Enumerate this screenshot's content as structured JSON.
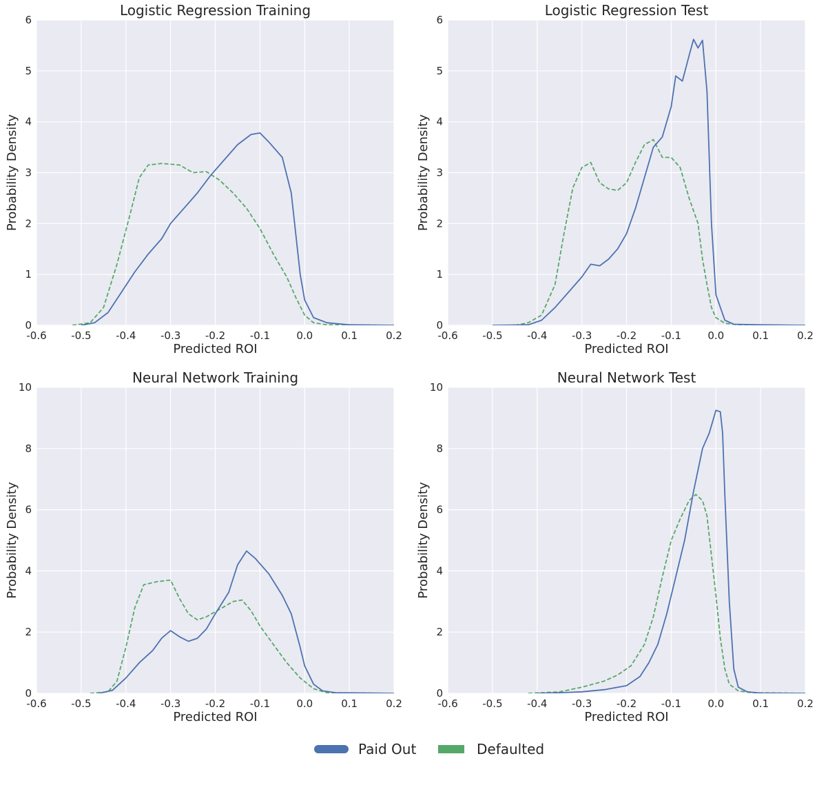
{
  "colors": {
    "paid": "#4c72b0",
    "defaulted": "#55a868",
    "plot_bg": "#eaeaf2",
    "grid": "#ffffff",
    "text": "#262626"
  },
  "legend": {
    "paid_label": "Paid Out",
    "defaulted_label": "Defaulted"
  },
  "chart_data": [
    {
      "type": "line",
      "title": "Logistic Regression Training",
      "xlabel": "Predicted ROI",
      "ylabel": "Probability Density",
      "xlim": [
        -0.6,
        0.2
      ],
      "ylim": [
        0,
        6
      ],
      "xticks": [
        "-0.6",
        "-0.5",
        "-0.4",
        "-0.3",
        "-0.2",
        "-0.1",
        "0.0",
        "0.1",
        "0.2"
      ],
      "yticks": [
        "0",
        "1",
        "2",
        "3",
        "4",
        "5",
        "6"
      ],
      "series": [
        {
          "name": "Paid Out",
          "style": "solid",
          "points": [
            [
              -0.5,
              0
            ],
            [
              -0.47,
              0.05
            ],
            [
              -0.44,
              0.25
            ],
            [
              -0.41,
              0.65
            ],
            [
              -0.38,
              1.05
            ],
            [
              -0.35,
              1.4
            ],
            [
              -0.32,
              1.7
            ],
            [
              -0.3,
              2.0
            ],
            [
              -0.27,
              2.3
            ],
            [
              -0.24,
              2.6
            ],
            [
              -0.21,
              2.95
            ],
            [
              -0.18,
              3.25
            ],
            [
              -0.15,
              3.55
            ],
            [
              -0.12,
              3.75
            ],
            [
              -0.1,
              3.78
            ],
            [
              -0.08,
              3.6
            ],
            [
              -0.05,
              3.3
            ],
            [
              -0.03,
              2.6
            ],
            [
              -0.02,
              1.8
            ],
            [
              -0.01,
              1.0
            ],
            [
              0.0,
              0.5
            ],
            [
              0.02,
              0.15
            ],
            [
              0.05,
              0.05
            ],
            [
              0.1,
              0.01
            ],
            [
              0.2,
              0
            ]
          ]
        },
        {
          "name": "Defaulted",
          "style": "dashed",
          "points": [
            [
              -0.52,
              0
            ],
            [
              -0.48,
              0.05
            ],
            [
              -0.45,
              0.35
            ],
            [
              -0.42,
              1.2
            ],
            [
              -0.39,
              2.2
            ],
            [
              -0.37,
              2.9
            ],
            [
              -0.35,
              3.15
            ],
            [
              -0.32,
              3.18
            ],
            [
              -0.28,
              3.15
            ],
            [
              -0.25,
              3.0
            ],
            [
              -0.22,
              3.02
            ],
            [
              -0.19,
              2.85
            ],
            [
              -0.16,
              2.6
            ],
            [
              -0.13,
              2.3
            ],
            [
              -0.1,
              1.9
            ],
            [
              -0.07,
              1.4
            ],
            [
              -0.04,
              0.95
            ],
            [
              -0.02,
              0.55
            ],
            [
              0.0,
              0.2
            ],
            [
              0.02,
              0.05
            ],
            [
              0.05,
              0.01
            ],
            [
              0.2,
              0
            ]
          ]
        }
      ]
    },
    {
      "type": "line",
      "title": "Logistic Regression Test",
      "xlabel": "Predicted ROI",
      "ylabel": "Probability Density",
      "xlim": [
        -0.6,
        0.2
      ],
      "ylim": [
        0,
        6
      ],
      "xticks": [
        "-0.6",
        "-0.5",
        "-0.4",
        "-0.3",
        "-0.2",
        "-0.1",
        "0.0",
        "0.1",
        "0.2"
      ],
      "yticks": [
        "0",
        "1",
        "2",
        "3",
        "4",
        "5",
        "6"
      ],
      "series": [
        {
          "name": "Paid Out",
          "style": "solid",
          "points": [
            [
              -0.5,
              0
            ],
            [
              -0.42,
              0.01
            ],
            [
              -0.39,
              0.1
            ],
            [
              -0.36,
              0.35
            ],
            [
              -0.33,
              0.65
            ],
            [
              -0.3,
              0.95
            ],
            [
              -0.28,
              1.2
            ],
            [
              -0.26,
              1.17
            ],
            [
              -0.24,
              1.3
            ],
            [
              -0.22,
              1.5
            ],
            [
              -0.2,
              1.8
            ],
            [
              -0.18,
              2.3
            ],
            [
              -0.16,
              2.9
            ],
            [
              -0.14,
              3.5
            ],
            [
              -0.12,
              3.7
            ],
            [
              -0.1,
              4.3
            ],
            [
              -0.09,
              4.9
            ],
            [
              -0.075,
              4.8
            ],
            [
              -0.06,
              5.3
            ],
            [
              -0.05,
              5.62
            ],
            [
              -0.04,
              5.45
            ],
            [
              -0.03,
              5.6
            ],
            [
              -0.02,
              4.6
            ],
            [
              -0.01,
              2.0
            ],
            [
              0.0,
              0.6
            ],
            [
              0.02,
              0.1
            ],
            [
              0.04,
              0.02
            ],
            [
              0.1,
              0.01
            ],
            [
              0.2,
              0
            ]
          ]
        },
        {
          "name": "Defaulted",
          "style": "dashed",
          "points": [
            [
              -0.45,
              0
            ],
            [
              -0.42,
              0.05
            ],
            [
              -0.39,
              0.2
            ],
            [
              -0.36,
              0.8
            ],
            [
              -0.34,
              1.8
            ],
            [
              -0.32,
              2.7
            ],
            [
              -0.3,
              3.1
            ],
            [
              -0.28,
              3.2
            ],
            [
              -0.26,
              2.8
            ],
            [
              -0.24,
              2.68
            ],
            [
              -0.22,
              2.65
            ],
            [
              -0.2,
              2.8
            ],
            [
              -0.18,
              3.2
            ],
            [
              -0.16,
              3.55
            ],
            [
              -0.14,
              3.65
            ],
            [
              -0.12,
              3.3
            ],
            [
              -0.1,
              3.3
            ],
            [
              -0.08,
              3.1
            ],
            [
              -0.06,
              2.5
            ],
            [
              -0.04,
              2.0
            ],
            [
              -0.03,
              1.3
            ],
            [
              -0.02,
              0.8
            ],
            [
              -0.01,
              0.35
            ],
            [
              0.0,
              0.15
            ],
            [
              0.02,
              0.04
            ],
            [
              0.05,
              0.01
            ],
            [
              0.2,
              0
            ]
          ]
        }
      ]
    },
    {
      "type": "line",
      "title": "Neural Network Training",
      "xlabel": "Predicted ROI",
      "ylabel": "Probability Density",
      "xlim": [
        -0.6,
        0.2
      ],
      "ylim": [
        0,
        10
      ],
      "xticks": [
        "-0.6",
        "-0.5",
        "-0.4",
        "-0.3",
        "-0.2",
        "-0.1",
        "0.0",
        "0.1",
        "0.2"
      ],
      "yticks": [
        "0",
        "2",
        "4",
        "6",
        "8",
        "10"
      ],
      "series": [
        {
          "name": "Paid Out",
          "style": "solid",
          "points": [
            [
              -0.46,
              0
            ],
            [
              -0.43,
              0.1
            ],
            [
              -0.4,
              0.5
            ],
            [
              -0.37,
              1.0
            ],
            [
              -0.34,
              1.4
            ],
            [
              -0.32,
              1.8
            ],
            [
              -0.3,
              2.05
            ],
            [
              -0.28,
              1.85
            ],
            [
              -0.26,
              1.7
            ],
            [
              -0.24,
              1.8
            ],
            [
              -0.22,
              2.1
            ],
            [
              -0.2,
              2.6
            ],
            [
              -0.17,
              3.3
            ],
            [
              -0.15,
              4.2
            ],
            [
              -0.13,
              4.65
            ],
            [
              -0.11,
              4.4
            ],
            [
              -0.08,
              3.9
            ],
            [
              -0.05,
              3.2
            ],
            [
              -0.03,
              2.6
            ],
            [
              -0.01,
              1.5
            ],
            [
              0.0,
              0.9
            ],
            [
              0.02,
              0.3
            ],
            [
              0.04,
              0.08
            ],
            [
              0.07,
              0.02
            ],
            [
              0.2,
              0
            ]
          ]
        },
        {
          "name": "Defaulted",
          "style": "dashed",
          "points": [
            [
              -0.48,
              0
            ],
            [
              -0.44,
              0.05
            ],
            [
              -0.42,
              0.4
            ],
            [
              -0.4,
              1.5
            ],
            [
              -0.38,
              2.8
            ],
            [
              -0.36,
              3.55
            ],
            [
              -0.33,
              3.65
            ],
            [
              -0.3,
              3.7
            ],
            [
              -0.28,
              3.1
            ],
            [
              -0.26,
              2.6
            ],
            [
              -0.24,
              2.4
            ],
            [
              -0.22,
              2.5
            ],
            [
              -0.19,
              2.75
            ],
            [
              -0.16,
              3.0
            ],
            [
              -0.14,
              3.05
            ],
            [
              -0.12,
              2.7
            ],
            [
              -0.1,
              2.2
            ],
            [
              -0.07,
              1.6
            ],
            [
              -0.04,
              1.0
            ],
            [
              -0.01,
              0.5
            ],
            [
              0.02,
              0.15
            ],
            [
              0.05,
              0.02
            ],
            [
              0.2,
              0
            ]
          ]
        }
      ]
    },
    {
      "type": "line",
      "title": "Neural Network Test",
      "xlabel": "Predicted ROI",
      "ylabel": "Probability Density",
      "xlim": [
        -0.6,
        0.2
      ],
      "ylim": [
        0,
        10
      ],
      "xticks": [
        "-0.6",
        "-0.5",
        "-0.4",
        "-0.3",
        "-0.2",
        "-0.1",
        "0.0",
        "0.1",
        "0.2"
      ],
      "yticks": [
        "0",
        "2",
        "4",
        "6",
        "8",
        "10"
      ],
      "series": [
        {
          "name": "Paid Out",
          "style": "solid",
          "points": [
            [
              -0.4,
              0
            ],
            [
              -0.35,
              0.02
            ],
            [
              -0.3,
              0.05
            ],
            [
              -0.25,
              0.12
            ],
            [
              -0.2,
              0.25
            ],
            [
              -0.17,
              0.55
            ],
            [
              -0.15,
              1.0
            ],
            [
              -0.13,
              1.6
            ],
            [
              -0.11,
              2.6
            ],
            [
              -0.09,
              3.8
            ],
            [
              -0.07,
              5.0
            ],
            [
              -0.05,
              6.6
            ],
            [
              -0.03,
              8.0
            ],
            [
              -0.015,
              8.5
            ],
            [
              0.0,
              9.25
            ],
            [
              0.01,
              9.2
            ],
            [
              0.015,
              8.5
            ],
            [
              0.02,
              6.5
            ],
            [
              0.03,
              3.0
            ],
            [
              0.04,
              0.8
            ],
            [
              0.05,
              0.2
            ],
            [
              0.07,
              0.05
            ],
            [
              0.1,
              0.01
            ],
            [
              0.2,
              0
            ]
          ]
        },
        {
          "name": "Defaulted",
          "style": "dashed",
          "points": [
            [
              -0.42,
              0
            ],
            [
              -0.35,
              0.05
            ],
            [
              -0.3,
              0.2
            ],
            [
              -0.25,
              0.4
            ],
            [
              -0.22,
              0.6
            ],
            [
              -0.19,
              0.9
            ],
            [
              -0.16,
              1.6
            ],
            [
              -0.14,
              2.5
            ],
            [
              -0.12,
              3.8
            ],
            [
              -0.1,
              5.0
            ],
            [
              -0.08,
              5.7
            ],
            [
              -0.06,
              6.3
            ],
            [
              -0.045,
              6.5
            ],
            [
              -0.03,
              6.3
            ],
            [
              -0.02,
              5.8
            ],
            [
              -0.01,
              4.5
            ],
            [
              0.0,
              3.2
            ],
            [
              0.01,
              1.8
            ],
            [
              0.02,
              0.8
            ],
            [
              0.03,
              0.3
            ],
            [
              0.05,
              0.08
            ],
            [
              0.08,
              0.02
            ],
            [
              0.2,
              0
            ]
          ]
        }
      ]
    }
  ]
}
